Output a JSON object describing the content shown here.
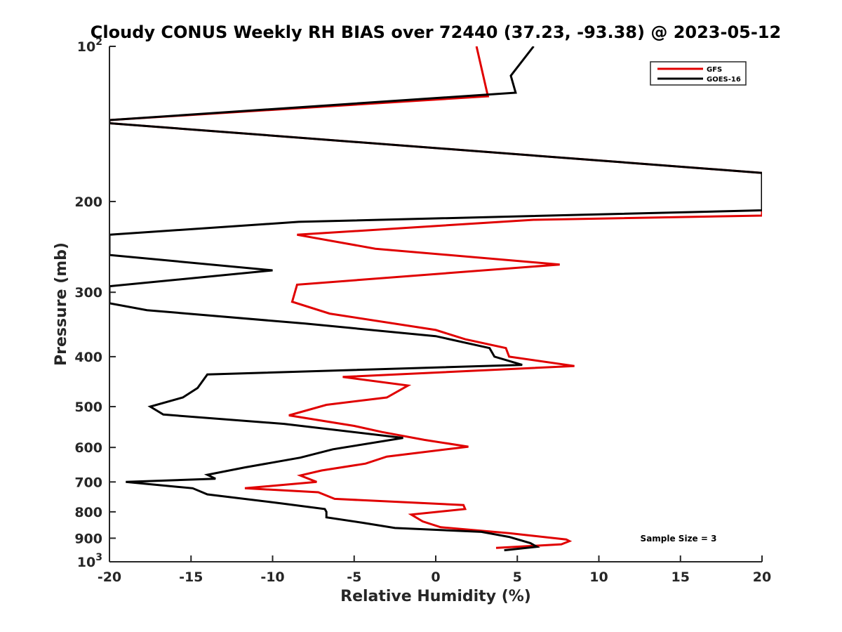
{
  "chart_data": {
    "type": "line",
    "title": "Cloudy CONUS Weekly RH BIAS over 72440 (37.23, -93.38) @ 2023-05-12",
    "xlabel": "Relative Humidity (%)",
    "ylabel": "Pressure (mb)",
    "xlim": [
      -20,
      20
    ],
    "ylim": [
      100,
      1000
    ],
    "y_scale": "log",
    "y_reversed": false,
    "grid": false,
    "legend_position": "top-right",
    "annotation": "Sample Size = 3",
    "x_ticks": [
      "-20",
      "-15",
      "-10",
      "-5",
      "0",
      "5",
      "10",
      "15",
      "20"
    ],
    "y_ticks": [
      {
        "value": 100,
        "base": "10",
        "exp": "2"
      },
      {
        "value": 200,
        "label": "200"
      },
      {
        "value": 300,
        "label": "300"
      },
      {
        "value": 400,
        "label": "400"
      },
      {
        "value": 500,
        "label": "500"
      },
      {
        "value": 600,
        "label": "600"
      },
      {
        "value": 700,
        "label": "700"
      },
      {
        "value": 800,
        "label": "800"
      },
      {
        "value": 900,
        "label": "900"
      },
      {
        "value": 1000,
        "base": "10",
        "exp": "3"
      }
    ],
    "series": [
      {
        "name": "GFS",
        "color": "#e00000",
        "points": [
          [
            2.5,
            100
          ],
          [
            3.2,
            125
          ],
          [
            -20,
            139
          ],
          [
            -20,
            141
          ],
          [
            20,
            176
          ],
          [
            20,
            213
          ],
          [
            6,
            217
          ],
          [
            -8.5,
            232
          ],
          [
            -3.7,
            247
          ],
          [
            7.6,
            265
          ],
          [
            -8.5,
            290
          ],
          [
            -8.8,
            313
          ],
          [
            -6.5,
            330
          ],
          [
            0,
            355
          ],
          [
            1.8,
            370
          ],
          [
            4.3,
            385
          ],
          [
            4.5,
            400
          ],
          [
            8.5,
            417
          ],
          [
            -5.7,
            438
          ],
          [
            -1.7,
            455
          ],
          [
            -3,
            480
          ],
          [
            -6.7,
            496
          ],
          [
            -9,
            520
          ],
          [
            -5,
            545
          ],
          [
            -3.3,
            560
          ],
          [
            -0.7,
            580
          ],
          [
            2,
            598
          ],
          [
            -3,
            625
          ],
          [
            -4.3,
            645
          ],
          [
            -7,
            665
          ],
          [
            -8.3,
            680
          ],
          [
            -7.3,
            700
          ],
          [
            -11.7,
            720
          ],
          [
            -7.2,
            733
          ],
          [
            -6.2,
            755
          ],
          [
            1.7,
            776
          ],
          [
            1.8,
            790
          ],
          [
            -1.5,
            810
          ],
          [
            -0.8,
            835
          ],
          [
            0.3,
            857
          ],
          [
            4.5,
            880
          ],
          [
            8,
            905
          ],
          [
            8.2,
            912
          ],
          [
            7.7,
            925
          ],
          [
            3.7,
            940
          ]
        ]
      },
      {
        "name": "GOES-16",
        "color": "#000000",
        "points": [
          [
            6,
            100
          ],
          [
            4.6,
            114
          ],
          [
            4.9,
            123
          ],
          [
            -20,
            139
          ],
          [
            -20,
            141
          ],
          [
            20,
            176
          ],
          [
            20,
            208
          ],
          [
            -8.4,
            219
          ],
          [
            -20,
            232
          ],
          [
            -20,
            254
          ],
          [
            -10,
            272
          ],
          [
            -20,
            292
          ],
          [
            -20,
            315
          ],
          [
            -17.7,
            325
          ],
          [
            -8,
            345
          ],
          [
            0,
            365
          ],
          [
            3.3,
            385
          ],
          [
            3.6,
            400
          ],
          [
            5.3,
            415
          ],
          [
            -14,
            433
          ],
          [
            -14.6,
            460
          ],
          [
            -15.5,
            480
          ],
          [
            -17.5,
            500
          ],
          [
            -16.7,
            518
          ],
          [
            -9.3,
            540
          ],
          [
            -2,
            575
          ],
          [
            -6.3,
            605
          ],
          [
            -8.3,
            628
          ],
          [
            -11.7,
            656
          ],
          [
            -14,
            678
          ],
          [
            -13.5,
            690
          ],
          [
            -19,
            700
          ],
          [
            -14.9,
            720
          ],
          [
            -14,
            740
          ],
          [
            -9.5,
            770
          ],
          [
            -6.8,
            790
          ],
          [
            -6.7,
            800
          ],
          [
            -6.7,
            820
          ],
          [
            -4.5,
            840
          ],
          [
            -2.5,
            860
          ],
          [
            2.8,
            875
          ],
          [
            4.5,
            895
          ],
          [
            5.8,
            920
          ],
          [
            6.2,
            935
          ],
          [
            4.2,
            950
          ]
        ]
      }
    ]
  }
}
